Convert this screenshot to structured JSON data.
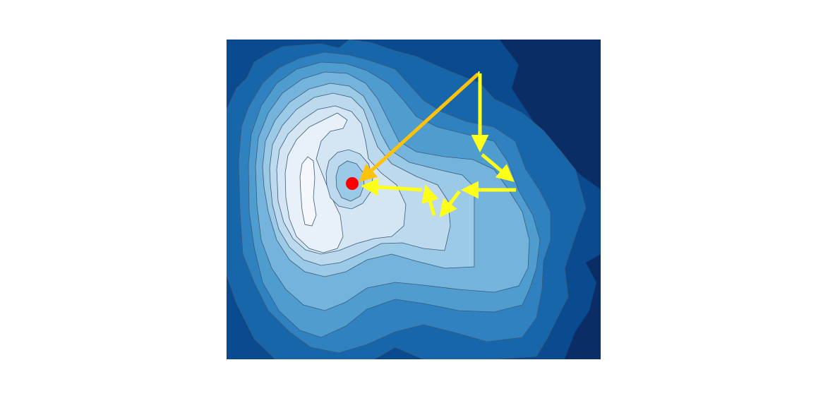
{
  "figure": {
    "background": "#ffffff",
    "contour_palette": [
      "#0b2d66",
      "#0a4a8f",
      "#1866aa",
      "#2f82bf",
      "#4f9ccf",
      "#74b3db",
      "#9bcae6",
      "#bcd9ee",
      "#d4e5f3",
      "#e8f1f9"
    ],
    "contour_line_color": "#4a5a6a",
    "minimum_marker_color": "#ff0000",
    "path_arrow_color": "#ffff1a",
    "direct_arrow_color": "#ffc20a"
  }
}
